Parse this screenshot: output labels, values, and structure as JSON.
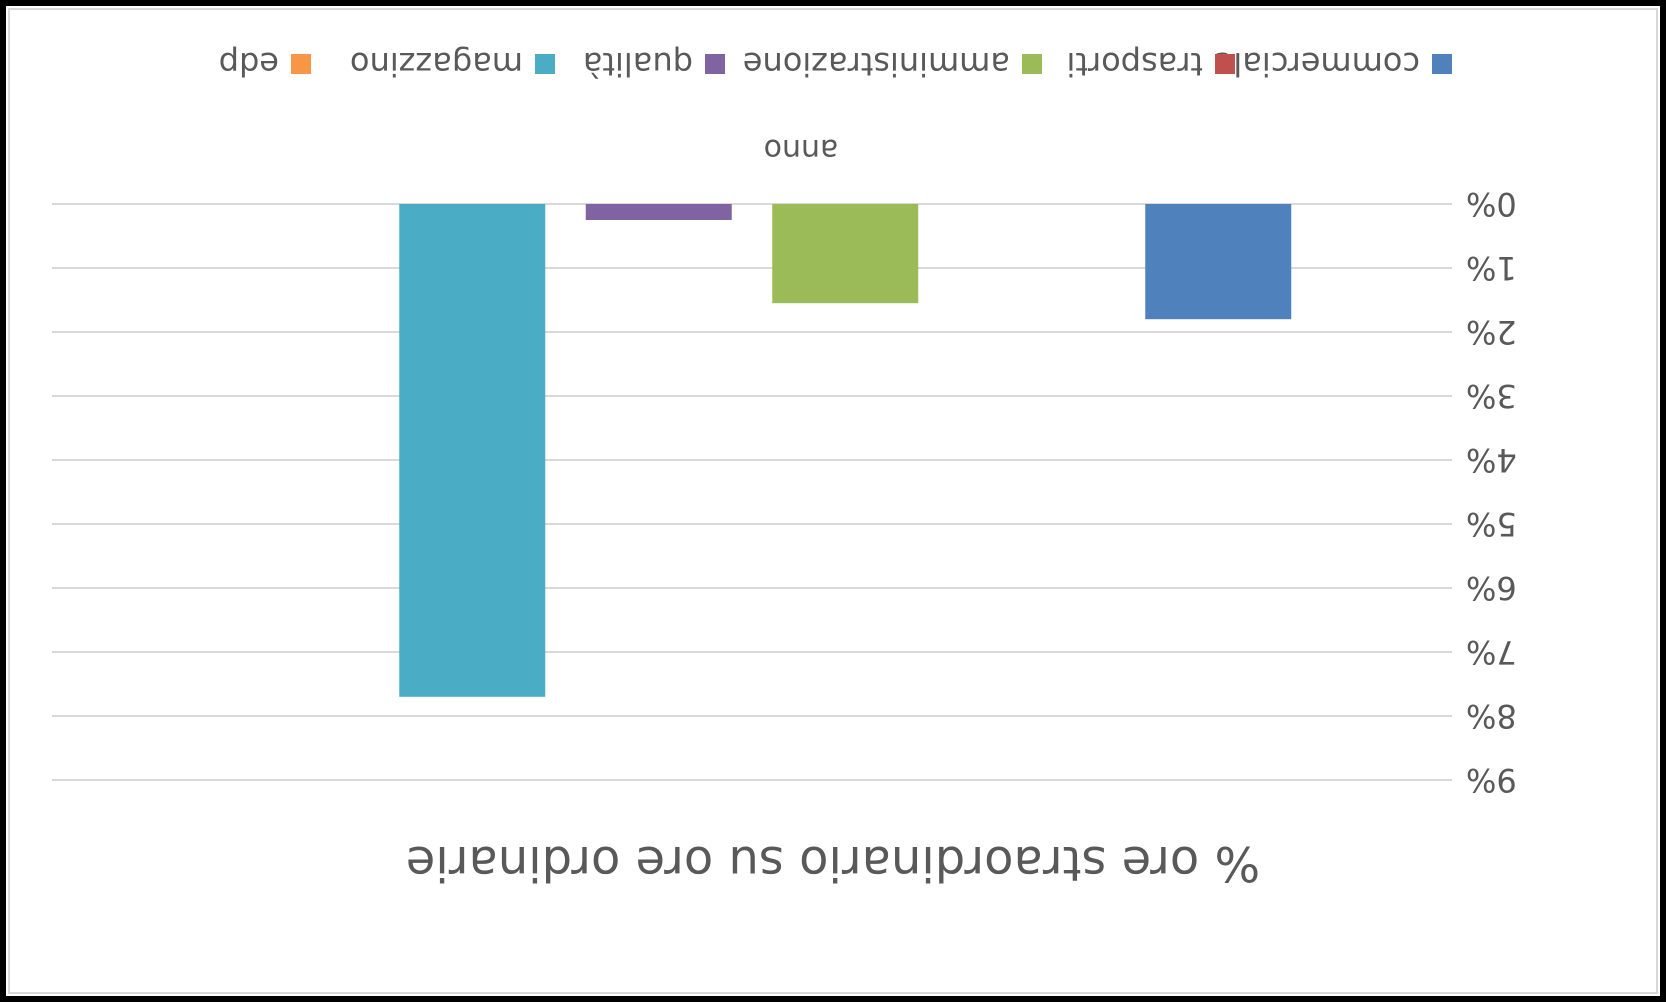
{
  "chart_data": {
    "type": "bar",
    "title": "% ore straordinario su ore ordinarie",
    "xlabel": "anno",
    "ylabel": "",
    "categories": [
      ""
    ],
    "series": [
      {
        "name": "commerciale",
        "color": "#4f81bd",
        "values": [
          0.018
        ]
      },
      {
        "name": "trasporti",
        "color": "#c0504d",
        "values": [
          0
        ]
      },
      {
        "name": "amministrazione",
        "color": "#9bbb59",
        "values": [
          0.0155
        ]
      },
      {
        "name": "qualità",
        "color": "#8064a2",
        "values": [
          0.0025
        ]
      },
      {
        "name": "magazzino",
        "color": "#4bacc6",
        "values": [
          0.077
        ]
      },
      {
        "name": "edp",
        "color": "#f79646",
        "values": [
          0
        ]
      }
    ],
    "ylim": [
      0,
      0.09
    ],
    "yticks": [
      0,
      0.01,
      0.02,
      0.03,
      0.04,
      0.05,
      0.06,
      0.07,
      0.08,
      0.09
    ],
    "ytick_labels": [
      "0%",
      "1%",
      "2%",
      "3%",
      "4%",
      "5%",
      "6%",
      "7%",
      "8%",
      "9%"
    ],
    "grid": true,
    "legend_position": "bottom",
    "orientation": "rotated 180 degrees"
  }
}
